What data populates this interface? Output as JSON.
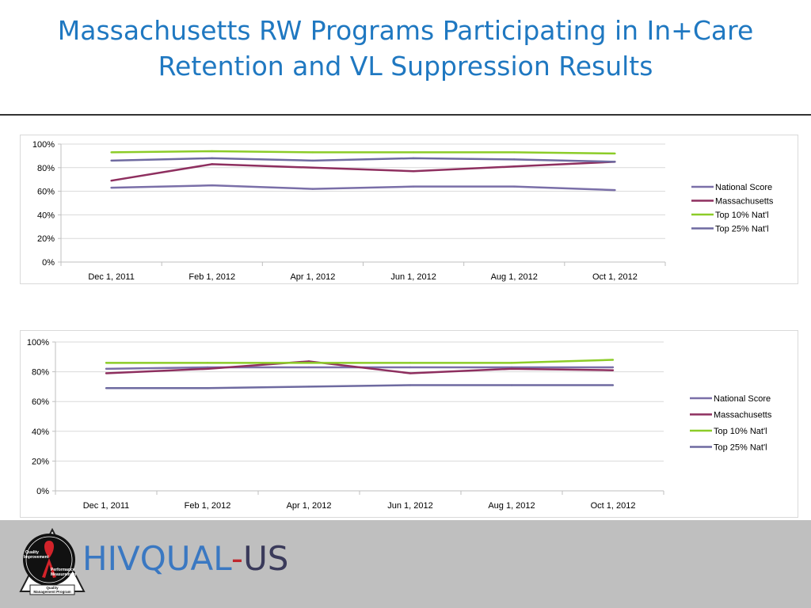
{
  "header": {
    "title_line1": "Massachusetts RW Programs Participating in In+Care",
    "title_line2": "Retention and VL Suppression Results"
  },
  "chart_data": [
    {
      "type": "line",
      "categories": [
        "Dec 1, 2011",
        "Feb 1, 2012",
        "Apr 1, 2012",
        "Jun 1, 2012",
        "Aug 1, 2012",
        "Oct 1, 2012"
      ],
      "y_ticks": [
        "0%",
        "20%",
        "40%",
        "60%",
        "80%",
        "100%"
      ],
      "ylim": [
        0,
        100
      ],
      "grid": true,
      "legend_position": "right",
      "series": [
        {
          "name": "National Score",
          "color": "#7a6fa8",
          "values": [
            63,
            65,
            62,
            64,
            64,
            61
          ]
        },
        {
          "name": "Massachusetts",
          "color": "#8e2f5f",
          "values": [
            69,
            83,
            80,
            77,
            81,
            85
          ]
        },
        {
          "name": "Top 10% Nat'l",
          "color": "#8ccc28",
          "values": [
            93,
            94,
            93,
            93,
            93,
            92
          ]
        },
        {
          "name": "Top 25% Nat'l",
          "color": "#6e6aa0",
          "values": [
            86,
            88,
            86,
            88,
            87,
            85
          ]
        }
      ]
    },
    {
      "type": "line",
      "categories": [
        "Dec 1, 2011",
        "Feb 1, 2012",
        "Apr 1, 2012",
        "Jun 1, 2012",
        "Aug 1, 2012",
        "Oct 1, 2012"
      ],
      "y_ticks": [
        "0%",
        "20%",
        "40%",
        "60%",
        "80%",
        "100%"
      ],
      "ylim": [
        0,
        100
      ],
      "grid": true,
      "legend_position": "right",
      "series": [
        {
          "name": "National Score",
          "color": "#7a6fa8",
          "values": [
            82,
            83,
            83,
            83,
            83,
            83
          ]
        },
        {
          "name": "Massachusetts",
          "color": "#8e2f5f",
          "values": [
            79,
            82,
            87,
            79,
            82,
            81
          ]
        },
        {
          "name": "Top 10% Nat'l",
          "color": "#8ccc28",
          "values": [
            86,
            86,
            86,
            86,
            86,
            88
          ]
        },
        {
          "name": "Top 25% Nat'l",
          "color": "#6e6aa0",
          "values": [
            69,
            69,
            70,
            71,
            71,
            71
          ]
        }
      ]
    }
  ],
  "footer": {
    "logo_part1": "HIVQUAL",
    "logo_dash": "-",
    "logo_part2": "US",
    "seal_line1": "Quality",
    "seal_line2": "Improvement",
    "seal_line3": "Performance",
    "seal_line4": "Measurement",
    "seal_line5": "Quality",
    "seal_line6": "Management Program"
  }
}
